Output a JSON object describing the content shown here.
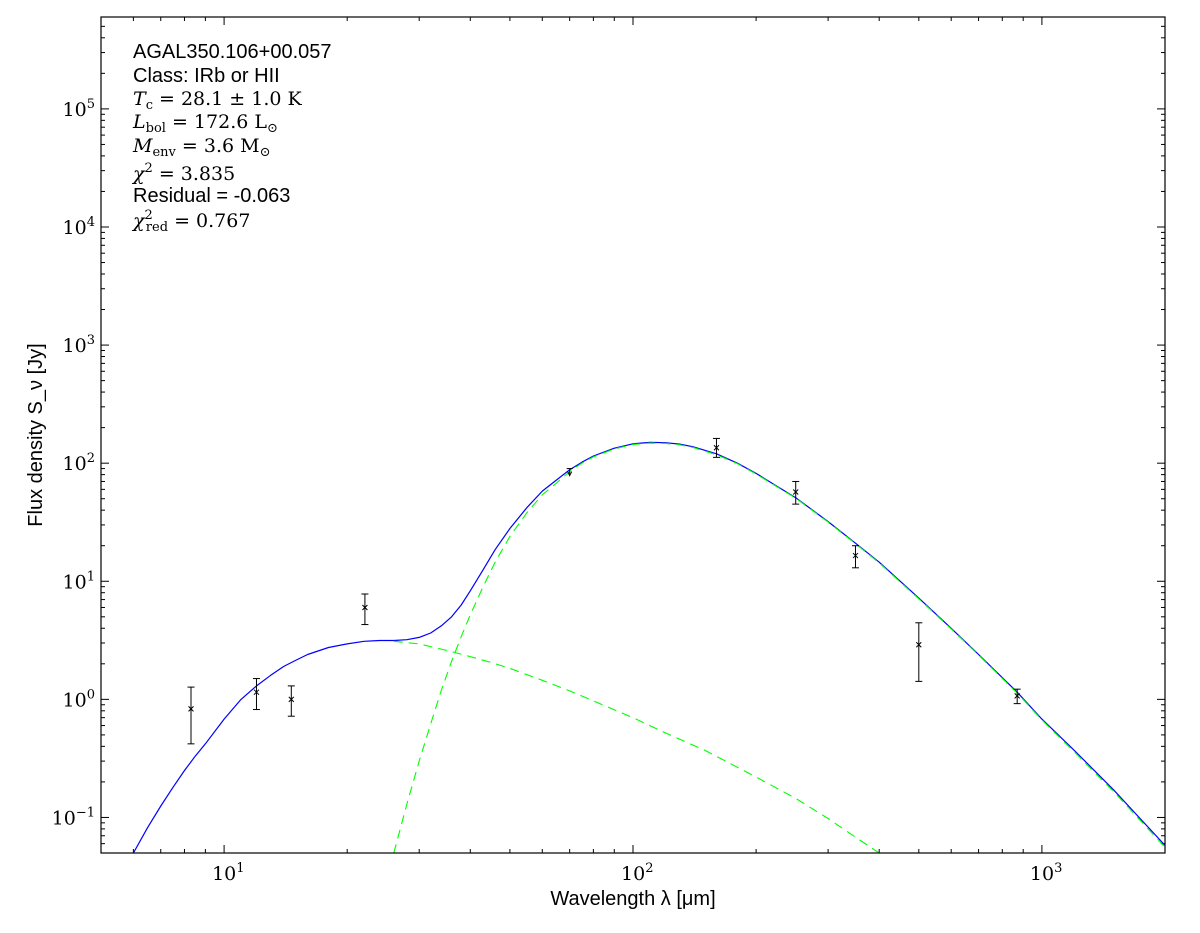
{
  "chart_data": {
    "type": "line",
    "xlabel": "Wavelength λ [μm]",
    "ylabel": "Flux density S_ν [Jy]",
    "xscale": "log",
    "yscale": "log",
    "xlim": [
      5.0,
      2000.0
    ],
    "ylim": [
      0.05,
      600000.0
    ],
    "x_ticks": [
      {
        "value": 10,
        "label_base": "10",
        "label_exp": "1"
      },
      {
        "value": 100,
        "label_base": "10",
        "label_exp": "2"
      },
      {
        "value": 1000,
        "label_base": "10",
        "label_exp": "3"
      }
    ],
    "y_ticks": [
      {
        "value": 0.1,
        "label_base": "10",
        "label_exp": "−1"
      },
      {
        "value": 1,
        "label_base": "10",
        "label_exp": "0"
      },
      {
        "value": 10,
        "label_base": "10",
        "label_exp": "1"
      },
      {
        "value": 100,
        "label_base": "10",
        "label_exp": "2"
      },
      {
        "value": 1000,
        "label_base": "10",
        "label_exp": "3"
      },
      {
        "value": 10000,
        "label_base": "10",
        "label_exp": "4"
      },
      {
        "value": 100000,
        "label_base": "10",
        "label_exp": "5"
      }
    ],
    "grid": false,
    "legend": "none",
    "annotations": {
      "source_name": "AGAL350.106+00.057",
      "class_line": "Class: IRb or HII",
      "tc_line": "T_c = 28.1 ± 1.0 K",
      "lbol_line": "L_bol = 172.6 L_⊙",
      "menv_line": "M_env = 3.6 M_⊙",
      "chi2_line": "χ² = 3.835",
      "residual_line": "Residual = -0.063",
      "chi2red_line": "χ²_red = 0.767"
    },
    "observed_points": [
      {
        "x": 8.3,
        "y": 0.83,
        "yerr_low": 0.42,
        "yerr_high": 1.27
      },
      {
        "x": 12.0,
        "y": 1.15,
        "yerr_low": 0.82,
        "yerr_high": 1.5
      },
      {
        "x": 14.6,
        "y": 1.0,
        "yerr_low": 0.72,
        "yerr_high": 1.3
      },
      {
        "x": 22.1,
        "y": 6.0,
        "yerr_low": 4.3,
        "yerr_high": 7.8
      },
      {
        "x": 70.0,
        "y": 80.0,
        "upper_limit": true,
        "cap": 90.0
      },
      {
        "x": 160.0,
        "y": 135.0,
        "yerr_low": 112.0,
        "yerr_high": 162.0
      },
      {
        "x": 250.0,
        "y": 57.0,
        "yerr_low": 45.0,
        "yerr_high": 70.0
      },
      {
        "x": 350.0,
        "y": 16.5,
        "yerr_low": 13.0,
        "yerr_high": 20.0
      },
      {
        "x": 500.0,
        "y": 2.9,
        "yerr_low": 1.42,
        "yerr_high": 4.45
      },
      {
        "x": 870.0,
        "y": 1.07,
        "yerr_low": 0.92,
        "yerr_high": 1.22
      }
    ],
    "series": [
      {
        "style": "solid",
        "color": "#0000ff",
        "x": [
          6.0,
          6.5,
          7,
          7.5,
          8,
          8.5,
          9,
          10,
          11,
          12,
          13,
          14,
          15,
          16,
          18,
          20,
          22,
          24,
          26,
          28,
          30,
          32,
          34,
          36,
          38,
          40,
          43,
          46,
          50,
          55,
          60,
          65,
          70,
          75,
          80,
          90,
          100,
          110,
          120,
          130,
          140,
          160,
          180,
          200,
          250,
          300,
          350,
          400,
          500,
          600,
          700,
          870,
          1000,
          1200,
          1500,
          2000
        ],
        "y": [
          0.05,
          0.082,
          0.125,
          0.18,
          0.25,
          0.33,
          0.42,
          0.68,
          1.0,
          1.3,
          1.6,
          1.9,
          2.15,
          2.4,
          2.75,
          2.95,
          3.1,
          3.15,
          3.15,
          3.2,
          3.35,
          3.65,
          4.2,
          5.0,
          6.3,
          8.3,
          12.5,
          18.5,
          28.0,
          42.0,
          58.0,
          72.0,
          88.0,
          102.0,
          115.0,
          134.0,
          146.0,
          150.0,
          149.0,
          145.0,
          138.0,
          120.0,
          100.0,
          82.0,
          51.0,
          32.0,
          21.0,
          14.5,
          7.2,
          4.0,
          2.4,
          1.15,
          0.68,
          0.37,
          0.17,
          0.058
        ]
      },
      {
        "style": "dashed",
        "color": "#00ff00",
        "x": [
          26,
          28,
          30,
          32,
          34,
          36,
          38,
          40,
          43,
          46,
          50,
          55,
          60,
          65,
          70,
          75,
          80,
          90,
          100,
          110,
          120,
          130,
          140,
          160,
          180,
          200,
          250,
          300,
          350,
          400,
          500,
          600,
          700,
          870,
          1000,
          1200,
          1500,
          2000
        ],
        "y": [
          0.05,
          0.13,
          0.3,
          0.62,
          1.2,
          2.1,
          3.4,
          5.2,
          9.0,
          14.5,
          24.0,
          38.0,
          54.0,
          68.0,
          85.0,
          100.0,
          113.0,
          132.0,
          144.0,
          148.0,
          147.0,
          143.0,
          136.0,
          118.0,
          99.0,
          81.0,
          50.5,
          31.7,
          20.8,
          14.3,
          7.1,
          3.95,
          2.37,
          1.13,
          0.67,
          0.36,
          0.165,
          0.056
        ]
      },
      {
        "style": "dashed",
        "color": "#00ff00",
        "x": [
          26,
          30,
          35,
          40,
          45,
          50,
          60,
          70,
          80,
          100,
          120,
          150,
          200,
          250,
          300,
          350,
          400
        ],
        "y": [
          3.1,
          2.95,
          2.6,
          2.3,
          2.05,
          1.83,
          1.45,
          1.18,
          0.97,
          0.7,
          0.52,
          0.37,
          0.22,
          0.145,
          0.098,
          0.068,
          0.05
        ]
      }
    ]
  }
}
